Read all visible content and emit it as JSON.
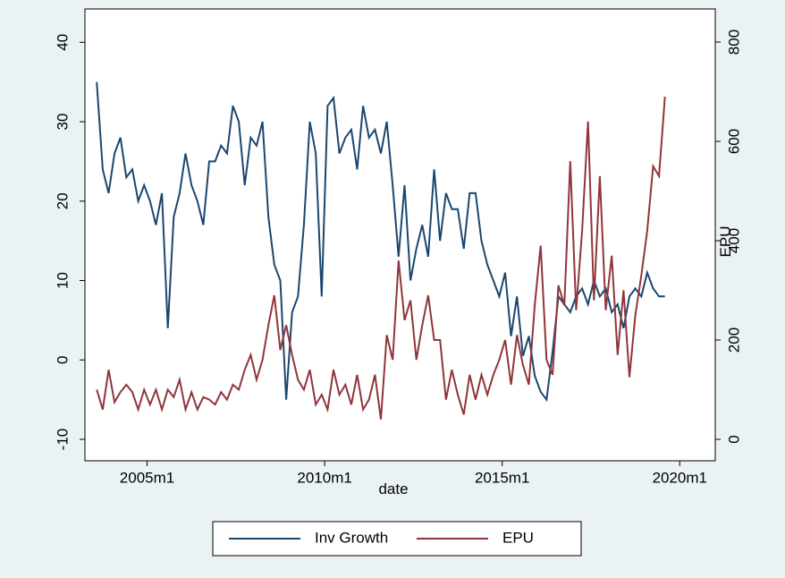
{
  "chart_data": {
    "type": "line",
    "x_label": "date",
    "y2_label": "EPU",
    "x": [
      523,
      525,
      527,
      529,
      531,
      533,
      535,
      537,
      539,
      541,
      543,
      545,
      547,
      549,
      551,
      553,
      555,
      557,
      559,
      561,
      563,
      565,
      567,
      569,
      571,
      573,
      575,
      577,
      579,
      581,
      583,
      585,
      587,
      589,
      591,
      593,
      595,
      597,
      599,
      601,
      603,
      605,
      607,
      609,
      611,
      613,
      615,
      617,
      619,
      621,
      623,
      625,
      627,
      629,
      631,
      633,
      635,
      637,
      639,
      641,
      643,
      645,
      647,
      649,
      651,
      653,
      655,
      657,
      659,
      661,
      663,
      665,
      667,
      669,
      671,
      673,
      675,
      677,
      679,
      681,
      683,
      685,
      687,
      689,
      691,
      693,
      695,
      697,
      699,
      701,
      703,
      705,
      707,
      709,
      711,
      713,
      715
    ],
    "series": [
      {
        "name": "Inv Growth",
        "color": "#1a476f",
        "values": [
          35,
          24,
          21,
          26,
          28,
          23,
          24,
          20,
          22,
          20,
          17,
          21,
          4,
          18,
          21,
          26,
          22,
          20,
          17,
          25,
          25,
          27,
          26,
          32,
          30,
          22,
          28,
          27,
          30,
          18,
          12,
          10,
          -5,
          6,
          8,
          17,
          30,
          26,
          8,
          32,
          33,
          26,
          28,
          29,
          24,
          32,
          28,
          29,
          26,
          30,
          22,
          13,
          22,
          10,
          14,
          17,
          13,
          24,
          15,
          21,
          19,
          19,
          14,
          21,
          21,
          15,
          12,
          10,
          8,
          11,
          3,
          8,
          0.5,
          3,
          -2,
          -4,
          -5,
          1,
          8,
          7,
          6,
          8,
          9,
          7,
          10,
          8,
          9,
          6,
          7,
          4,
          8,
          9,
          8,
          11,
          9,
          8,
          8
        ]
      },
      {
        "name": "EPU",
        "color": "#90353b",
        "axis": "y2",
        "values": [
          100,
          60,
          140,
          75,
          95,
          110,
          95,
          60,
          100,
          70,
          100,
          60,
          100,
          85,
          120,
          60,
          95,
          60,
          85,
          80,
          70,
          95,
          80,
          110,
          100,
          140,
          170,
          120,
          160,
          230,
          290,
          180,
          230,
          170,
          120,
          100,
          140,
          70,
          90,
          60,
          140,
          90,
          110,
          70,
          130,
          60,
          80,
          130,
          40,
          210,
          160,
          360,
          240,
          280,
          160,
          230,
          290,
          200,
          200,
          80,
          140,
          90,
          50,
          130,
          80,
          130,
          90,
          130,
          160,
          200,
          110,
          210,
          150,
          110,
          270,
          390,
          160,
          130,
          310,
          270,
          560,
          260,
          420,
          640,
          280,
          530,
          260,
          370,
          170,
          300,
          125,
          250,
          330,
          420,
          550,
          530,
          690
        ]
      }
    ],
    "xlim": [
      519,
      732
    ],
    "xticks": [
      {
        "value": 540,
        "label": "2005m1"
      },
      {
        "value": 600,
        "label": "2010m1"
      },
      {
        "value": 660,
        "label": "2015m1"
      },
      {
        "value": 720,
        "label": "2020m1"
      }
    ],
    "ylim": [
      -12.7,
      44.2
    ],
    "yticks": [
      -10,
      0,
      10,
      20,
      30,
      40
    ],
    "y2lim": [
      -43.2,
      866.7
    ],
    "y2ticks": [
      0,
      200,
      400,
      600,
      800
    ],
    "grid": true
  }
}
